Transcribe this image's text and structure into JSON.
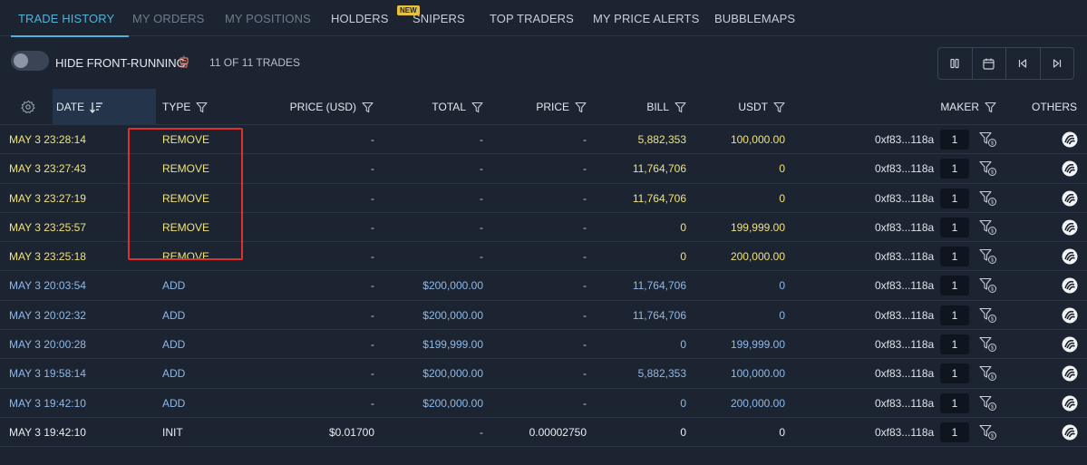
{
  "tabs": [
    {
      "label": "TRADE HISTORY",
      "state": "active"
    },
    {
      "label": "MY ORDERS",
      "state": "dim"
    },
    {
      "label": "MY POSITIONS",
      "state": "dim"
    },
    {
      "label": "HOLDERS",
      "state": "normal"
    },
    {
      "label": "SNIPERS",
      "state": "normal",
      "badge": "NEW"
    },
    {
      "label": "TOP TRADERS",
      "state": "normal"
    },
    {
      "label": "MY PRICE ALERTS",
      "state": "normal"
    },
    {
      "label": "BUBBLEMAPS",
      "state": "normal"
    }
  ],
  "toolbar": {
    "hide_label": "HIDE FRONT-RUNNING",
    "hide_enabled": false,
    "trade_count": "11 OF 11 TRADES"
  },
  "columns": {
    "date": "DATE",
    "type": "TYPE",
    "price_usd": "PRICE (USD)",
    "total": "TOTAL",
    "price": "PRICE",
    "bill": "BILL",
    "usdt": "USDT",
    "maker": "MAKER",
    "others": "OTHERS"
  },
  "colors": {
    "remove": "#f0e27a",
    "add": "#8fb8e8",
    "init": "#e8ecf1",
    "accent": "#4fb3d9",
    "highlight": "#e0302a"
  },
  "trades": [
    {
      "date": "MAY 3 23:28:14",
      "type": "REMOVE",
      "price_usd": "-",
      "total": "-",
      "price": "-",
      "bill": "5,882,353",
      "usdt": "100,000.00",
      "maker": "0xf83...118a",
      "count": "1"
    },
    {
      "date": "MAY 3 23:27:43",
      "type": "REMOVE",
      "price_usd": "-",
      "total": "-",
      "price": "-",
      "bill": "11,764,706",
      "usdt": "0",
      "maker": "0xf83...118a",
      "count": "1"
    },
    {
      "date": "MAY 3 23:27:19",
      "type": "REMOVE",
      "price_usd": "-",
      "total": "-",
      "price": "-",
      "bill": "11,764,706",
      "usdt": "0",
      "maker": "0xf83...118a",
      "count": "1"
    },
    {
      "date": "MAY 3 23:25:57",
      "type": "REMOVE",
      "price_usd": "-",
      "total": "-",
      "price": "-",
      "bill": "0",
      "usdt": "199,999.00",
      "maker": "0xf83...118a",
      "count": "1"
    },
    {
      "date": "MAY 3 23:25:18",
      "type": "REMOVE",
      "price_usd": "-",
      "total": "-",
      "price": "-",
      "bill": "0",
      "usdt": "200,000.00",
      "maker": "0xf83...118a",
      "count": "1"
    },
    {
      "date": "MAY 3 20:03:54",
      "type": "ADD",
      "price_usd": "-",
      "total": "$200,000.00",
      "price": "-",
      "bill": "11,764,706",
      "usdt": "0",
      "maker": "0xf83...118a",
      "count": "1"
    },
    {
      "date": "MAY 3 20:02:32",
      "type": "ADD",
      "price_usd": "-",
      "total": "$200,000.00",
      "price": "-",
      "bill": "11,764,706",
      "usdt": "0",
      "maker": "0xf83...118a",
      "count": "1"
    },
    {
      "date": "MAY 3 20:00:28",
      "type": "ADD",
      "price_usd": "-",
      "total": "$199,999.00",
      "price": "-",
      "bill": "0",
      "usdt": "199,999.00",
      "maker": "0xf83...118a",
      "count": "1"
    },
    {
      "date": "MAY 3 19:58:14",
      "type": "ADD",
      "price_usd": "-",
      "total": "$200,000.00",
      "price": "-",
      "bill": "5,882,353",
      "usdt": "100,000.00",
      "maker": "0xf83...118a",
      "count": "1"
    },
    {
      "date": "MAY 3 19:42:10",
      "type": "ADD",
      "price_usd": "-",
      "total": "$200,000.00",
      "price": "-",
      "bill": "0",
      "usdt": "200,000.00",
      "maker": "0xf83...118a",
      "count": "1"
    },
    {
      "date": "MAY 3 19:42:10",
      "type": "INIT",
      "price_usd": "$0.01700",
      "total": "-",
      "price": "0.00002750",
      "bill": "0",
      "usdt": "0",
      "maker": "0xf83...118a",
      "count": "1"
    }
  ]
}
